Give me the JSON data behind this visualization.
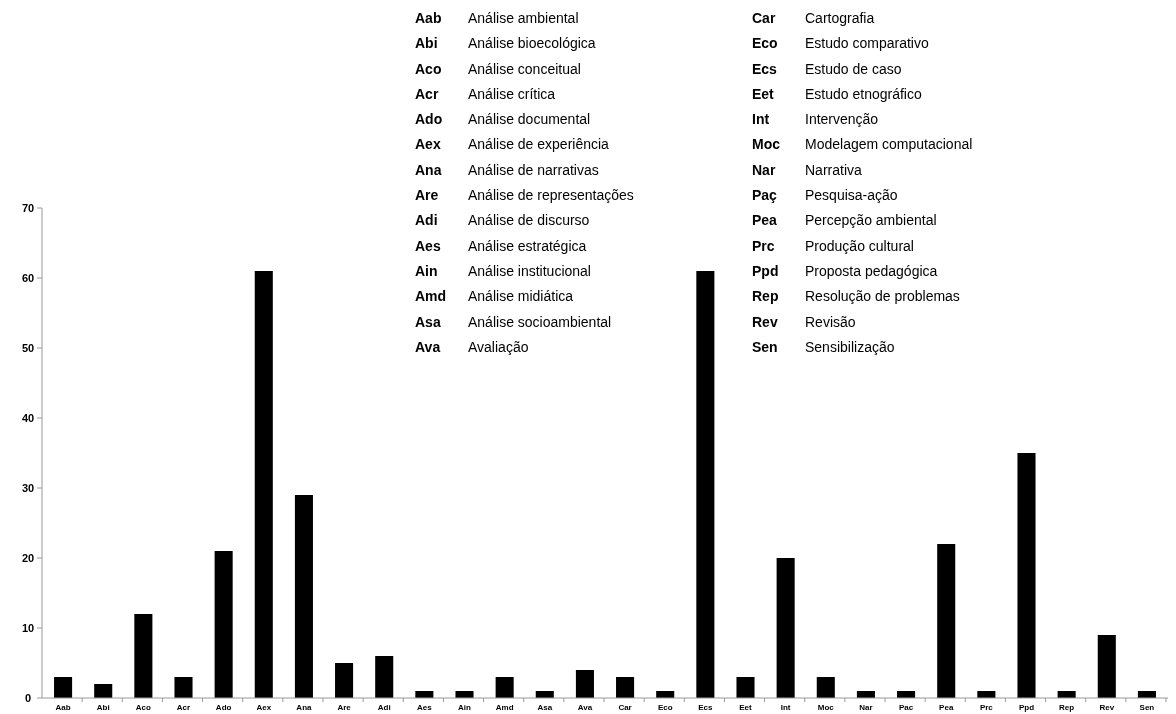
{
  "chart_data": {
    "type": "bar",
    "categories": [
      "Aab",
      "Abi",
      "Aco",
      "Acr",
      "Ado",
      "Aex",
      "Ana",
      "Are",
      "Adi",
      "Aes",
      "Ain",
      "Amd",
      "Asa",
      "Ava",
      "Car",
      "Eco",
      "Ecs",
      "Eet",
      "Int",
      "Moc",
      "Nar",
      "Pac",
      "Pea",
      "Prc",
      "Ppd",
      "Rep",
      "Rev",
      "Sen"
    ],
    "values": [
      3,
      2,
      12,
      3,
      21,
      61,
      29,
      5,
      6,
      1,
      1,
      3,
      1,
      4,
      3,
      1,
      61,
      3,
      20,
      3,
      1,
      1,
      22,
      1,
      35,
      1,
      9,
      1
    ],
    "color": "#000000",
    "ylim": [
      0,
      70
    ],
    "yticks": [
      0,
      10,
      20,
      30,
      40,
      50,
      60,
      70
    ],
    "grid": false,
    "annotations": [
      "Aab Análise ambiental",
      "Abi Análise bioecológica",
      "Aco Análise conceitual",
      "Acr Análise crítica",
      "Ado Análise documental",
      "Aex Análise de experiência",
      "Ana Análise de narrativas",
      "Are Análise de representações",
      "Adi Análise de discurso",
      "Aes Análise estratégica",
      "Ain Análise institucional",
      "Amd Análise midiática",
      "Asa Análise socioambiental",
      "Ava Avaliação",
      "Car Cartografia",
      "Eco Estudo comparativo",
      "Ecs Estudo de caso",
      "Eet Estudo etnográfico",
      "Int Intervenção",
      "Moc Modelagem computacional",
      "Nar Narrativa",
      "Paç Pesquisa-ação",
      "Pea Percepção ambiental",
      "Prc Produção cultural",
      "Ppd Proposta pedagógica",
      "Rep Resolução de problemas",
      "Rev Revisão",
      "Sen Sensibilização"
    ]
  }
}
